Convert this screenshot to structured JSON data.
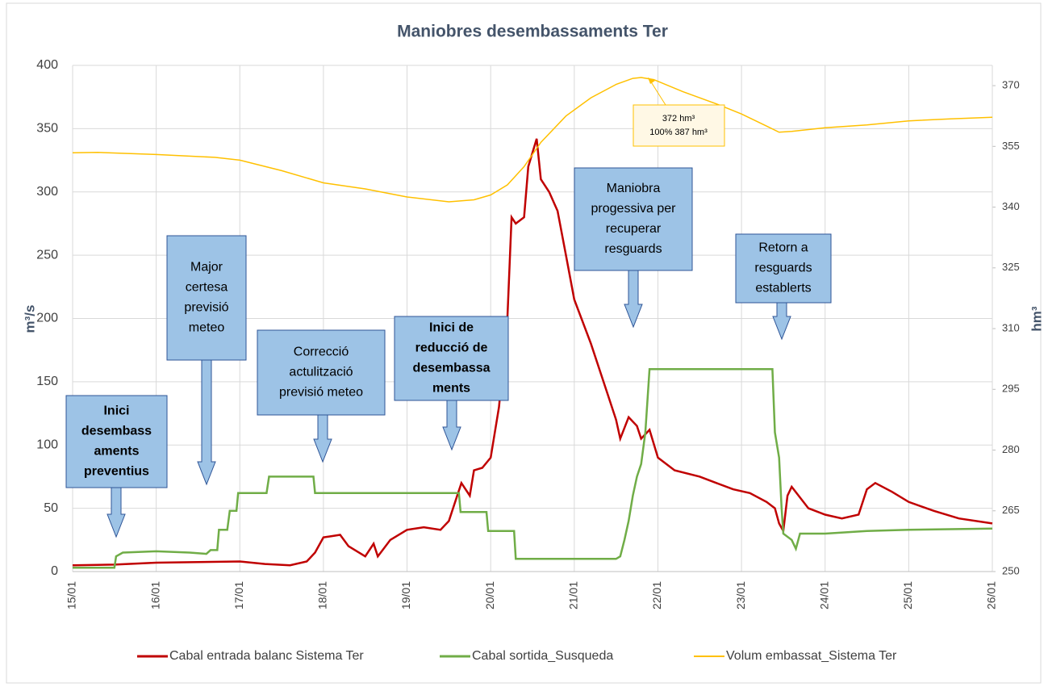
{
  "chart_data": {
    "type": "line",
    "title": "Maniobres desembassaments Ter",
    "y_label": "m³/s",
    "y2_label": "hm³",
    "xlim": [
      15,
      26
    ],
    "xticks": [
      {
        "value": 15,
        "label": "15/01"
      },
      {
        "value": 16,
        "label": "16/01"
      },
      {
        "value": 17,
        "label": "17/01"
      },
      {
        "value": 18,
        "label": "18/01"
      },
      {
        "value": 19,
        "label": "19/01"
      },
      {
        "value": 20,
        "label": "20/01"
      },
      {
        "value": 21,
        "label": "21/01"
      },
      {
        "value": 22,
        "label": "22/01"
      },
      {
        "value": 23,
        "label": "23/01"
      },
      {
        "value": 24,
        "label": "24/01"
      },
      {
        "value": 25,
        "label": "25/01"
      },
      {
        "value": 26,
        "label": "26/01"
      }
    ],
    "ylim": [
      0,
      400
    ],
    "yticks": [
      0,
      50,
      100,
      150,
      200,
      250,
      300,
      350,
      400
    ],
    "y2lim": [
      250,
      375
    ],
    "y2ticks": [
      250,
      265,
      280,
      295,
      310,
      325,
      340,
      355,
      370
    ],
    "grid": true,
    "legend": "bottom",
    "series": [
      {
        "name": "Cabal entrada balanc Sistema Ter",
        "color": "#c00000",
        "width": 2.5,
        "x": [
          15,
          15.5,
          16,
          16.5,
          17,
          17.3,
          17.6,
          17.8,
          17.9,
          18,
          18.1,
          18.2,
          18.3,
          18.5,
          18.6,
          18.65,
          18.8,
          19,
          19.2,
          19.4,
          19.5,
          19.6,
          19.65,
          19.75,
          19.8,
          19.9,
          20,
          20.1,
          20.2,
          20.25,
          20.3,
          20.4,
          20.45,
          20.55,
          20.6,
          20.7,
          20.8,
          20.9,
          21,
          21.2,
          21.4,
          21.5,
          21.55,
          21.65,
          21.75,
          21.8,
          21.9,
          22,
          22.2,
          22.5,
          22.7,
          22.9,
          23.1,
          23.3,
          23.4,
          23.45,
          23.5,
          23.55,
          23.6,
          23.8,
          24,
          24.2,
          24.4,
          24.5,
          24.6,
          24.8,
          25,
          25.3,
          25.6,
          26
        ],
        "values": [
          5,
          5.5,
          7,
          7.5,
          8,
          6,
          5,
          8,
          15,
          27,
          28,
          29,
          20,
          12,
          22,
          12,
          25,
          33,
          35,
          33,
          40,
          60,
          70,
          60,
          80,
          82,
          90,
          130,
          200,
          280,
          275,
          280,
          320,
          342,
          310,
          300,
          285,
          250,
          215,
          180,
          140,
          120,
          105,
          122,
          115,
          105,
          112,
          90,
          80,
          75,
          70,
          65,
          62,
          55,
          50,
          38,
          32,
          60,
          67,
          50,
          45,
          42,
          45,
          65,
          70,
          63,
          55,
          48,
          42,
          38
        ]
      },
      {
        "name": "Cabal sortida_Susqueda",
        "color": "#70ad47",
        "width": 2.5,
        "x": [
          15,
          15.5,
          15.52,
          15.6,
          16,
          16.4,
          16.6,
          16.65,
          16.73,
          16.75,
          16.85,
          16.88,
          16.96,
          16.98,
          17.32,
          17.35,
          17.88,
          17.9,
          19.62,
          19.64,
          19.95,
          19.97,
          20.28,
          20.3,
          21.5,
          21.55,
          21.6,
          21.65,
          21.7,
          21.75,
          21.8,
          21.85,
          21.9,
          23.37,
          23.4,
          23.45,
          23.48,
          23.5,
          23.6,
          23.65,
          23.7,
          24,
          24.5,
          25,
          26
        ],
        "values": [
          3,
          3,
          12,
          15,
          16,
          15,
          14,
          17,
          17,
          33,
          33,
          48,
          48,
          62,
          62,
          75,
          75,
          62,
          62,
          47,
          47,
          32,
          32,
          10,
          10,
          12,
          25,
          40,
          60,
          75,
          85,
          110,
          160,
          160,
          110,
          90,
          50,
          30,
          25,
          18,
          30,
          30,
          32,
          33,
          34
        ]
      },
      {
        "name": "Volum embassat_Sistema Ter",
        "color": "#ffc000",
        "width": 1.5,
        "axis": "y2",
        "x": [
          15,
          15.3,
          16,
          16.7,
          17,
          17.5,
          18,
          18.5,
          19,
          19.5,
          19.8,
          20,
          20.2,
          20.4,
          20.6,
          20.9,
          21.2,
          21.5,
          21.7,
          21.8,
          21.95,
          22.3,
          22.7,
          23,
          23.3,
          23.45,
          23.6,
          24,
          24.5,
          25,
          25.5,
          26
        ],
        "values": [
          353.4,
          353.5,
          353,
          352.3,
          351.6,
          349,
          346,
          344.5,
          342.5,
          341.3,
          341.8,
          343,
          345.5,
          350,
          356,
          362.5,
          367,
          370.3,
          371.8,
          372,
          371.5,
          368.5,
          365.5,
          363,
          360,
          358.5,
          358.7,
          359.6,
          360.3,
          361.3,
          361.8,
          362.2
        ]
      }
    ],
    "volume_label": [
      "372 hm³",
      "100% 387 hm³"
    ],
    "annotations": [
      [
        "Inici",
        "desembass",
        "aments",
        "preventius"
      ],
      [
        "Major",
        "certesa",
        "previsió",
        "meteo"
      ],
      [
        "Correcció",
        "actulització",
        "previsió meteo"
      ],
      [
        "Inici de",
        "reducció de",
        "desembassa",
        "ments"
      ],
      [
        "Maniobra",
        "progessiva per",
        "recuperar",
        "resguards"
      ],
      [
        "Retorn a",
        "resguards",
        "establerts"
      ]
    ]
  }
}
